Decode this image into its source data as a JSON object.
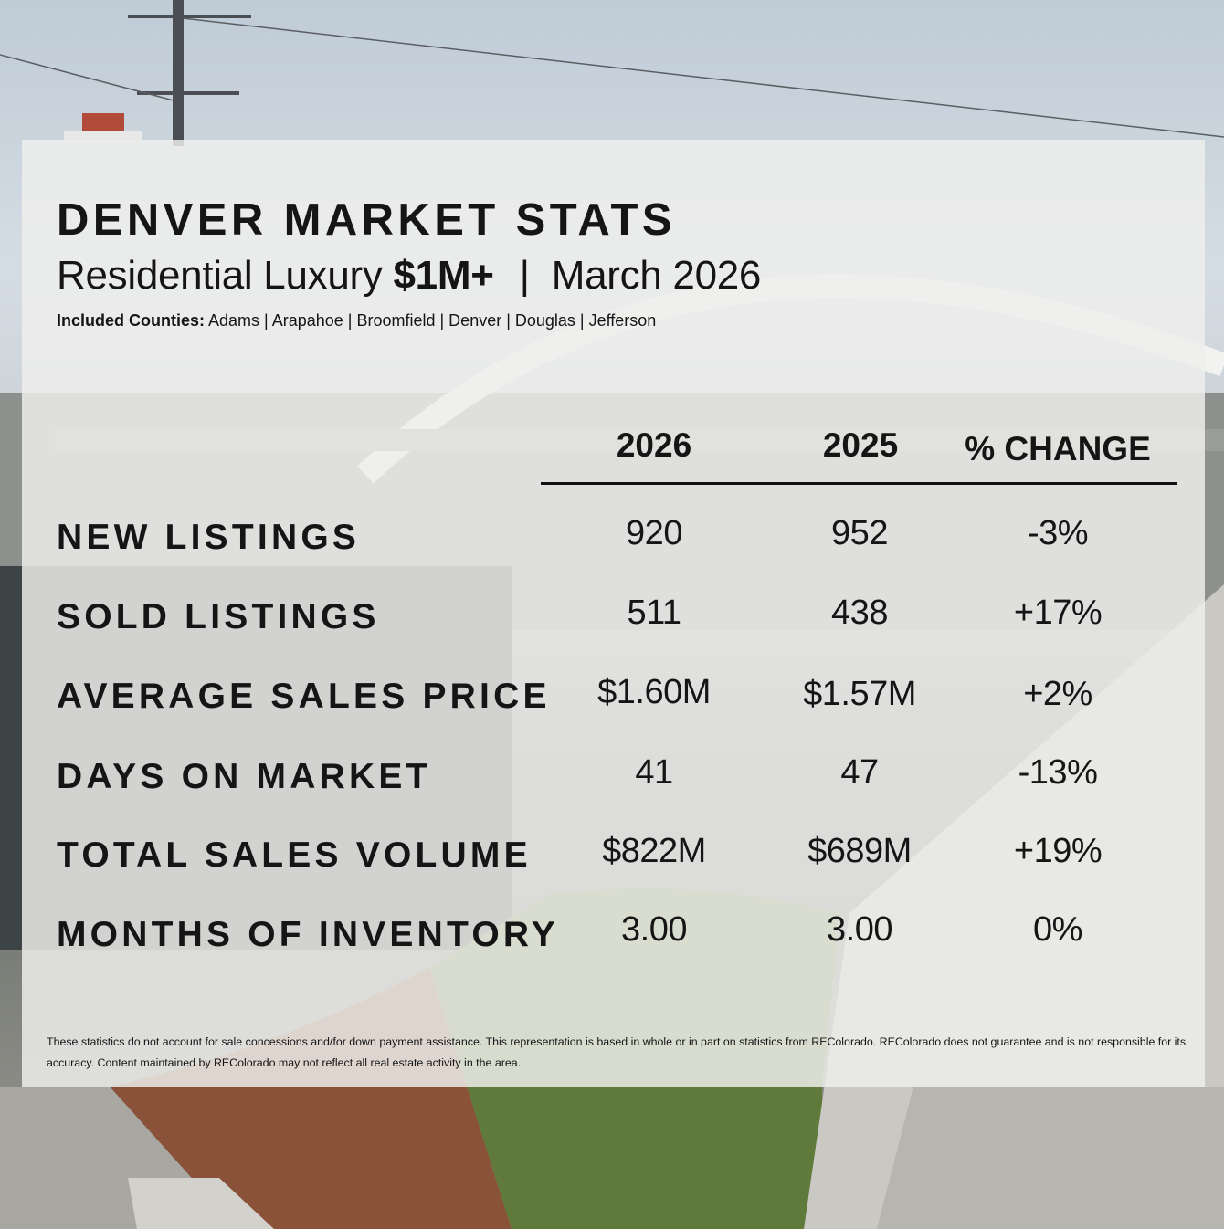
{
  "header": {
    "title": "DENVER MARKET STATS",
    "subtitle_prefix": "Residential Luxury",
    "subtitle_price": "$1M+",
    "subtitle_separator": "|",
    "subtitle_period": "March 2026",
    "counties_label": "Included Counties:",
    "counties_list": "Adams | Arapahoe | Broomfield | Denver | Douglas | Jefferson"
  },
  "table": {
    "columns": [
      "2026",
      "2025",
      "% CHANGE"
    ],
    "rows": [
      {
        "label": "NEW LISTINGS",
        "v2026": "920",
        "v2025": "952",
        "change": "-3%"
      },
      {
        "label": "SOLD LISTINGS",
        "v2026": "511",
        "v2025": "438",
        "change": "+17%"
      },
      {
        "label": "AVERAGE SALES PRICE",
        "v2026": "$1.60M",
        "v2025": "$1.57M",
        "change": "+2%"
      },
      {
        "label": "DAYS ON MARKET",
        "v2026": "41",
        "v2025": "47",
        "change": "-13%"
      },
      {
        "label": "TOTAL SALES VOLUME",
        "v2026": "$822M",
        "v2025": "$689M",
        "change": "+19%"
      },
      {
        "label": "MONTHS OF INVENTORY",
        "v2026": "3.00",
        "v2025": "3.00",
        "change": "0%"
      }
    ]
  },
  "disclaimer": "These statistics do not account for sale concessions and/for down payment assistance. This representation is based in whole or in part on statistics from REColorado. REColorado does not guarantee and is not responsible for its accuracy. Content maintained by REColorado may not reflect all real estate activity in the area.",
  "colors": {
    "text": "#151515",
    "card": "#eeeeec",
    "sky": "#c9d3dc",
    "grass": "#5f7a3a",
    "brick": "#8a5238",
    "concrete": "#b8b8b2"
  }
}
